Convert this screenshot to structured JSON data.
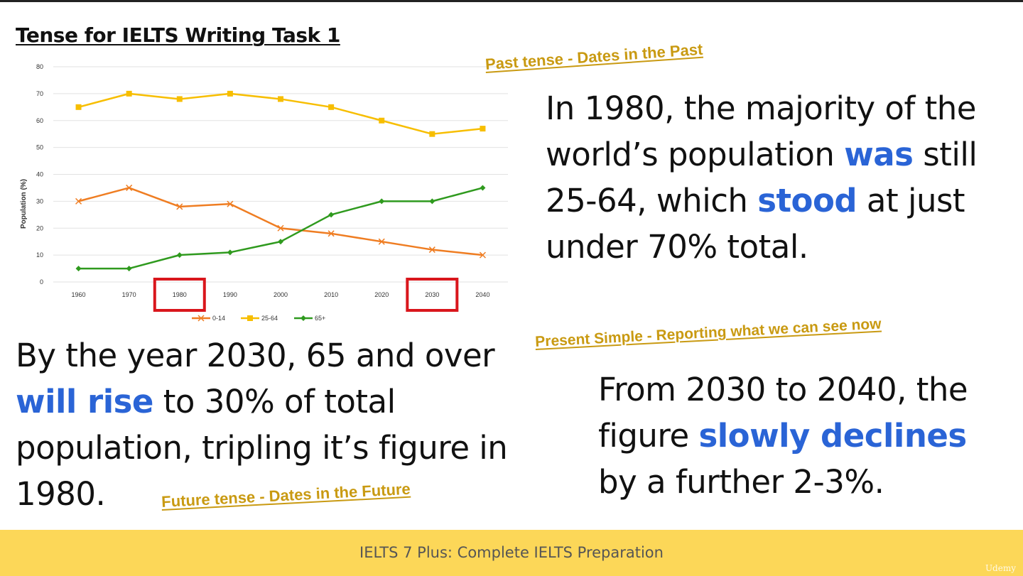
{
  "slide": {
    "title": "Tense for IELTS Writing Task 1",
    "footer": "IELTS 7 Plus: Complete IELTS Preparation",
    "watermark": "Udemy"
  },
  "annotations": {
    "past": "Past tense - Dates in the Past",
    "present": "Present Simple - Reporting what we can see now",
    "future": "Future tense - Dates in the Future"
  },
  "paragraphs": {
    "p1": {
      "a": "In 1980, the majority of the world’s population ",
      "h1": "was",
      "b": " still 25-64, which ",
      "h2": "stood",
      "c": " at just under 70% total."
    },
    "p2": {
      "a": "By the year 2030, 65 and over ",
      "h1": "will rise",
      "b": " to 30% of total population, tripling it’s figure in 1980."
    },
    "p3": {
      "a": "From 2030 to 2040, the figure ",
      "h1": "slowly declines",
      "b": " by a further 2-3%."
    }
  },
  "colors": {
    "highlight": "#2a64d6",
    "annotation": "#c99a12",
    "footer_bg": "#fcd758",
    "box": "#d9161c"
  },
  "chart_data": {
    "type": "line",
    "categories": [
      "1960",
      "1970",
      "1980",
      "1990",
      "2000",
      "2010",
      "2020",
      "2030",
      "2040"
    ],
    "ylabel": "Population (%)",
    "ylim": [
      0,
      80
    ],
    "yticks": [
      0,
      10,
      20,
      30,
      40,
      50,
      60,
      70,
      80
    ],
    "grid": true,
    "legend_position": "bottom",
    "highlighted_categories": [
      "1980",
      "2030"
    ],
    "series": [
      {
        "name": "0-14",
        "color": "#ef7d22",
        "marker": "x",
        "values": [
          30,
          35,
          28,
          29,
          20,
          18,
          15,
          12,
          10
        ]
      },
      {
        "name": "25-64",
        "color": "#f7be00",
        "marker": "square",
        "values": [
          65,
          70,
          68,
          70,
          68,
          65,
          60,
          55,
          57
        ]
      },
      {
        "name": "65+",
        "color": "#2f9a1e",
        "marker": "diamond",
        "values": [
          5,
          5,
          10,
          11,
          15,
          25,
          30,
          30,
          35
        ]
      }
    ]
  }
}
